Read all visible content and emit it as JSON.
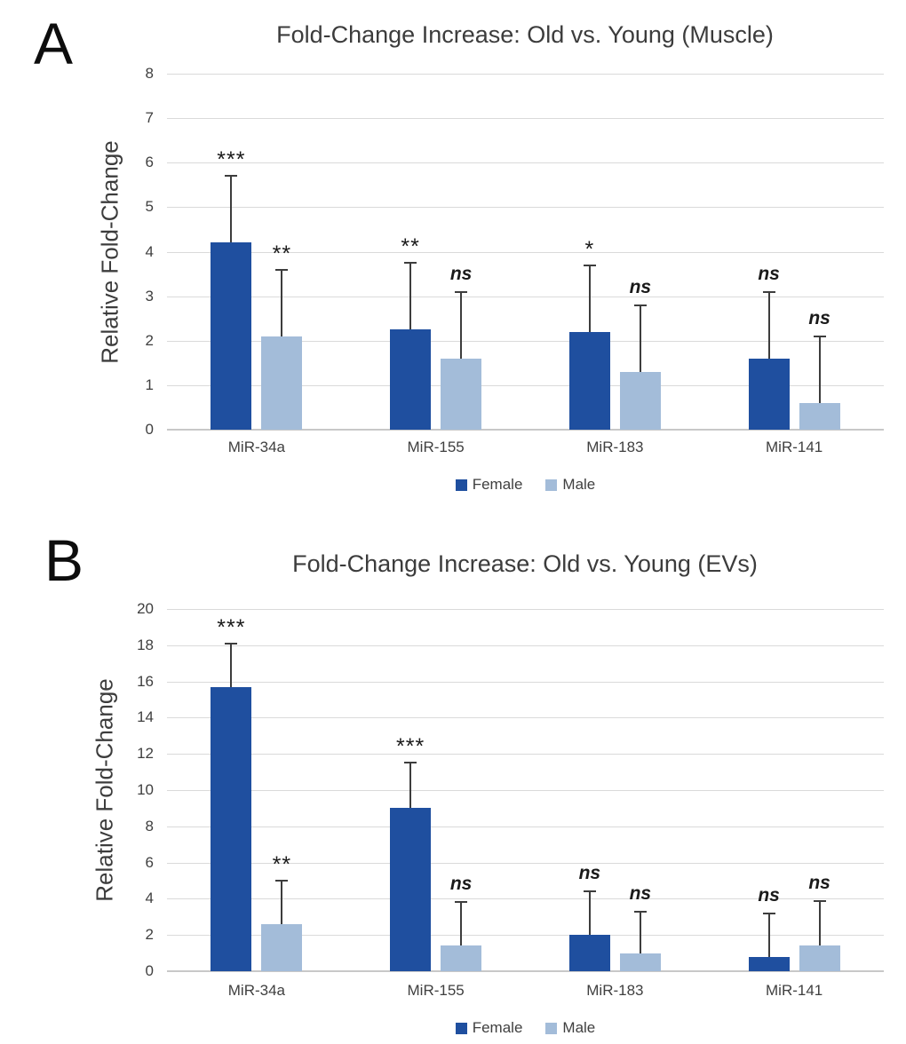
{
  "figure": {
    "panels_count": 2
  },
  "colors": {
    "female": "#1f4f9f",
    "male": "#a3bcd9",
    "grid": "#dadada",
    "axis": "#c8c8c8",
    "error_bar": "#3d3d3d",
    "text": "#3c3c3c"
  },
  "chart_data": [
    {
      "type": "bar",
      "panel_label": "A",
      "title": "Fold-Change Increase: Old vs. Young (Muscle)",
      "ylabel": "Relative Fold-Change",
      "xlabel": "",
      "categories": [
        "MiR-34a",
        "MiR-155",
        "MiR-183",
        "MiR-141"
      ],
      "series": [
        {
          "name": "Female",
          "color_key": "female",
          "values": [
            4.2,
            2.25,
            2.2,
            1.6
          ],
          "error_tops": [
            5.7,
            3.75,
            3.7,
            3.1
          ],
          "significance": [
            "***",
            "**",
            "*",
            "ns"
          ]
        },
        {
          "name": "Male",
          "color_key": "male",
          "values": [
            2.1,
            1.6,
            1.3,
            0.6
          ],
          "error_tops": [
            3.6,
            3.1,
            2.8,
            2.1
          ],
          "significance": [
            "**",
            "ns",
            "ns",
            "ns"
          ]
        }
      ],
      "ylim": [
        0,
        8
      ],
      "ytick_step": 1,
      "grid": true,
      "legend_position": "bottom"
    },
    {
      "type": "bar",
      "panel_label": "B",
      "title": "Fold-Change Increase: Old vs. Young (EVs)",
      "ylabel": "Relative Fold-Change",
      "xlabel": "",
      "categories": [
        "MiR-34a",
        "MiR-155",
        "MiR-183",
        "MiR-141"
      ],
      "series": [
        {
          "name": "Female",
          "color_key": "female",
          "values": [
            15.7,
            9.0,
            2.0,
            0.8
          ],
          "error_tops": [
            18.1,
            11.5,
            4.4,
            3.2
          ],
          "significance": [
            "***",
            "***",
            "ns",
            "ns"
          ]
        },
        {
          "name": "Male",
          "color_key": "male",
          "values": [
            2.6,
            1.4,
            1.0,
            1.4
          ],
          "error_tops": [
            5.0,
            3.8,
            3.3,
            3.85
          ],
          "significance": [
            "**",
            "ns",
            "ns",
            "ns"
          ]
        }
      ],
      "ylim": [
        0,
        20
      ],
      "ytick_step": 2,
      "grid": true,
      "legend_position": "bottom"
    }
  ]
}
